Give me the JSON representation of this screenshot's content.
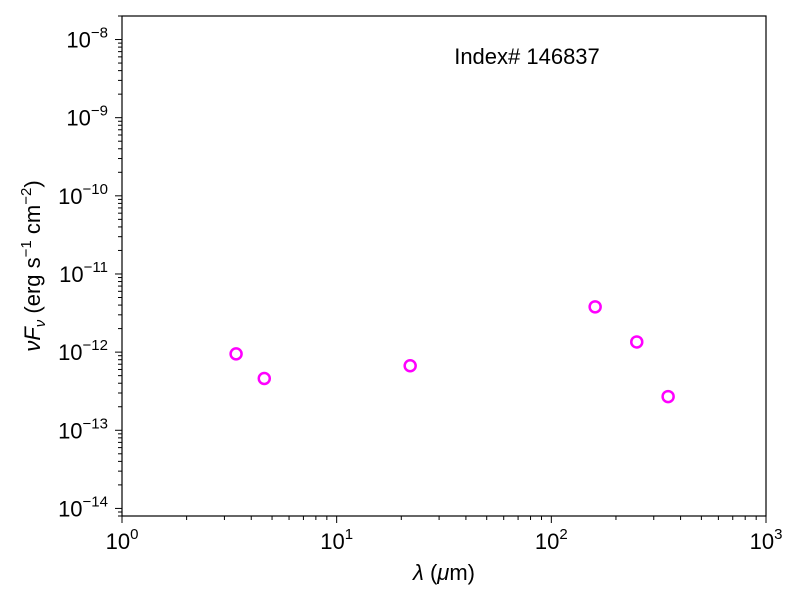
{
  "chart_data": {
    "type": "scatter",
    "title": "",
    "annotation": "Index# 146837",
    "xlabel": "λ (μm)",
    "ylabel": "νF_ν (erg s⁻¹ cm⁻²)",
    "xscale": "log",
    "yscale": "log",
    "xlim": [
      1,
      1000
    ],
    "ylim": [
      8e-15,
      2e-08
    ],
    "x_ticks": [
      {
        "base": "10",
        "exp": "0"
      },
      {
        "base": "10",
        "exp": "1"
      },
      {
        "base": "10",
        "exp": "2"
      },
      {
        "base": "10",
        "exp": "3"
      }
    ],
    "y_ticks": [
      {
        "base": "10",
        "exp": "−14"
      },
      {
        "base": "10",
        "exp": "−13"
      },
      {
        "base": "10",
        "exp": "−12"
      },
      {
        "base": "10",
        "exp": "−11"
      },
      {
        "base": "10",
        "exp": "−10"
      },
      {
        "base": "10",
        "exp": "−9"
      },
      {
        "base": "10",
        "exp": "−8"
      }
    ],
    "grid": false,
    "marker_color": "#ff00ff",
    "marker": "open-circle",
    "series": [
      {
        "x": [
          3.4,
          4.6,
          22,
          160,
          250,
          350
        ],
        "y": [
          9.5e-13,
          4.6e-13,
          6.7e-13,
          3.8e-12,
          1.35e-12,
          2.7e-13
        ]
      }
    ]
  }
}
